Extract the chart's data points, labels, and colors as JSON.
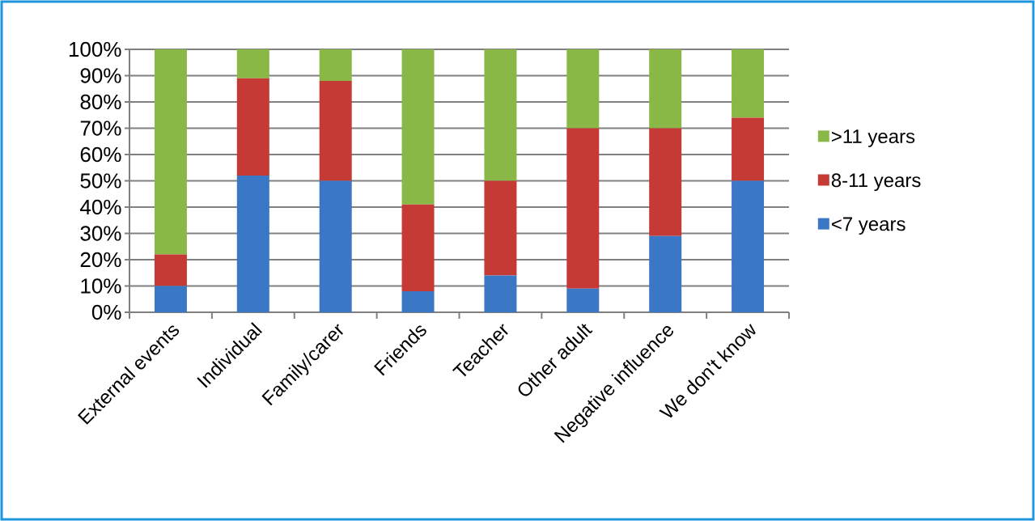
{
  "chart_data": {
    "type": "bar",
    "stacked": true,
    "categories": [
      "External events",
      "Individual",
      "Family/carer",
      "Friends",
      "Teacher",
      "Other adult",
      "Negative influence",
      "We don't know"
    ],
    "series": [
      {
        "name": "<7 years",
        "color": "#3a78c6",
        "values": [
          10,
          52,
          50,
          8,
          14,
          9,
          29,
          50
        ]
      },
      {
        "name": "8-11 years",
        "color": "#c63a36",
        "values": [
          12,
          37,
          38,
          33,
          36,
          61,
          41,
          24
        ]
      },
      {
        "name": ">11 years",
        "color": "#8ab846",
        "values": [
          78,
          11,
          12,
          59,
          50,
          30,
          30,
          26
        ]
      }
    ],
    "ylim": [
      0,
      100
    ],
    "yticks": [
      {
        "value": 0,
        "label": "0%"
      },
      {
        "value": 10,
        "label": "10%"
      },
      {
        "value": 20,
        "label": "20%"
      },
      {
        "value": 30,
        "label": "30%"
      },
      {
        "value": 40,
        "label": "40%"
      },
      {
        "value": 50,
        "label": "50%"
      },
      {
        "value": 60,
        "label": "60%"
      },
      {
        "value": 70,
        "label": "70%"
      },
      {
        "value": 80,
        "label": "80%"
      },
      {
        "value": 90,
        "label": "90%"
      },
      {
        "value": 100,
        "label": "100%"
      }
    ],
    "grid": "y",
    "legend": "right"
  }
}
